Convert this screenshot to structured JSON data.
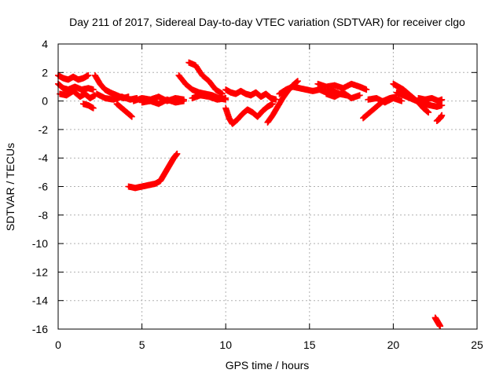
{
  "chart_data": {
    "type": "scatter",
    "title": "Day 211 of 2017, Sidereal Day-to-day VTEC variation (SDTVAR) for receiver clgo",
    "xlabel": "GPS time / hours",
    "ylabel": "SDTVAR / TECUs",
    "xlim": [
      0,
      25
    ],
    "ylim": [
      -16,
      4
    ],
    "xticks": [
      0,
      5,
      10,
      15,
      20,
      25
    ],
    "yticks": [
      4,
      2,
      0,
      -2,
      -4,
      -6,
      -8,
      -10,
      -12,
      -14,
      -16
    ],
    "grid": true,
    "legend": "none",
    "marker": "plus",
    "series": [
      {
        "name": "SDTVAR",
        "color": "#ff0000",
        "tracks": [
          {
            "x": [
              0.0,
              0.3,
              0.6,
              0.9,
              1.2,
              1.5,
              1.8
            ],
            "y": [
              1.8,
              1.6,
              1.5,
              1.7,
              1.5,
              1.6,
              1.8
            ]
          },
          {
            "x": [
              0.0,
              0.3,
              0.6,
              1.0,
              1.4,
              1.8,
              2.1
            ],
            "y": [
              1.2,
              0.9,
              0.8,
              1.0,
              0.8,
              0.9,
              0.8
            ]
          },
          {
            "x": [
              0.1,
              0.5,
              0.9,
              1.3,
              1.6,
              1.9,
              2.2
            ],
            "y": [
              0.5,
              0.4,
              0.7,
              0.3,
              0.5,
              0.2,
              0.4
            ]
          },
          {
            "x": [
              1.5,
              1.8,
              2.1
            ],
            "y": [
              -0.2,
              -0.3,
              -0.5
            ]
          },
          {
            "x": [
              2.2,
              2.5,
              2.8,
              3.1,
              3.5,
              3.9,
              4.2
            ],
            "y": [
              1.8,
              1.2,
              0.8,
              0.6,
              0.4,
              0.2,
              0.3
            ]
          },
          {
            "x": [
              2.3,
              2.8,
              3.3,
              3.8,
              4.3,
              4.7
            ],
            "y": [
              0.5,
              0.2,
              0.1,
              0.3,
              0.1,
              0.2
            ]
          },
          {
            "x": [
              3.5,
              3.8,
              4.1,
              4.4
            ],
            "y": [
              -0.2,
              -0.5,
              -0.8,
              -1.1
            ]
          },
          {
            "x": [
              4.5,
              5.0,
              5.5,
              6.0,
              6.5,
              7.0,
              7.5
            ],
            "y": [
              0.0,
              0.2,
              0.1,
              0.3,
              0.0,
              0.2,
              0.1
            ]
          },
          {
            "x": [
              5.0,
              5.5,
              6.0,
              6.5,
              7.0,
              7.5
            ],
            "y": [
              -0.1,
              0.0,
              -0.2,
              0.1,
              -0.1,
              0.0
            ]
          },
          {
            "x": [
              4.2,
              4.6,
              5.0,
              5.4,
              5.8,
              6.1,
              6.3,
              6.5,
              6.7,
              6.9,
              7.1
            ],
            "y": [
              -6.0,
              -6.1,
              -6.0,
              -5.9,
              -5.8,
              -5.6,
              -5.2,
              -4.8,
              -4.4,
              -4.0,
              -3.7
            ]
          },
          {
            "x": [
              7.2,
              7.6,
              8.0,
              8.4,
              8.8,
              9.2,
              9.6,
              10.0
            ],
            "y": [
              1.8,
              1.2,
              0.8,
              0.6,
              0.5,
              0.4,
              0.2,
              0.1
            ]
          },
          {
            "x": [
              7.8,
              8.2,
              8.6,
              9.0,
              9.4,
              9.8
            ],
            "y": [
              2.7,
              2.5,
              1.8,
              1.4,
              0.8,
              0.5
            ]
          },
          {
            "x": [
              8.0,
              8.5,
              9.0,
              9.5,
              10.0
            ],
            "y": [
              0.2,
              0.4,
              0.3,
              0.1,
              0.2
            ]
          },
          {
            "x": [
              10.0,
              10.3,
              10.6,
              10.9,
              11.2,
              11.5,
              11.8,
              12.1,
              12.4,
              12.7,
              13.0
            ],
            "y": [
              0.8,
              0.6,
              0.5,
              0.7,
              0.5,
              0.4,
              0.6,
              0.3,
              0.5,
              0.2,
              0.1
            ]
          },
          {
            "x": [
              10.0,
              10.2,
              10.4,
              10.7,
              11.0,
              11.3,
              11.6,
              11.9,
              12.2,
              12.5,
              12.8
            ],
            "y": [
              -0.5,
              -1.2,
              -1.6,
              -1.3,
              -0.9,
              -0.6,
              -0.8,
              -1.1,
              -0.7,
              -0.4,
              -0.2
            ]
          },
          {
            "x": [
              12.5,
              12.8,
              13.1,
              13.4,
              13.7,
              14.0,
              14.3
            ],
            "y": [
              -1.5,
              -1.0,
              -0.4,
              0.2,
              0.7,
              1.1,
              1.4
            ]
          },
          {
            "x": [
              13.2,
              13.6,
              14.0,
              14.4,
              14.8,
              15.2,
              15.6,
              16.0,
              16.4,
              16.8,
              17.2
            ],
            "y": [
              0.5,
              0.8,
              1.0,
              0.9,
              0.8,
              0.7,
              0.8,
              0.6,
              0.7,
              0.5,
              0.4
            ]
          },
          {
            "x": [
              15.5,
              16.0,
              16.5,
              17.0,
              17.5,
              18.0,
              18.4
            ],
            "y": [
              1.2,
              1.0,
              1.1,
              0.9,
              1.2,
              1.0,
              0.8
            ]
          },
          {
            "x": [
              16.0,
              16.5,
              17.0,
              17.5,
              18.0
            ],
            "y": [
              0.5,
              0.3,
              0.6,
              0.2,
              0.4
            ]
          },
          {
            "x": [
              18.2,
              18.6,
              19.0,
              19.4,
              19.8,
              20.2
            ],
            "y": [
              -1.2,
              -0.8,
              -0.4,
              0.0,
              0.2,
              0.3
            ]
          },
          {
            "x": [
              18.5,
              19.0,
              19.5,
              20.0,
              20.5
            ],
            "y": [
              0.1,
              0.2,
              -0.1,
              0.2,
              0.0
            ]
          },
          {
            "x": [
              20.0,
              20.3,
              20.6,
              20.9,
              21.2,
              21.5,
              21.8,
              22.1
            ],
            "y": [
              1.2,
              1.0,
              0.8,
              0.5,
              0.2,
              -0.1,
              -0.5,
              -0.8
            ]
          },
          {
            "x": [
              20.2,
              20.6,
              21.0,
              21.4,
              21.8,
              22.2,
              22.6,
              22.9
            ],
            "y": [
              0.6,
              0.4,
              0.2,
              0.0,
              -0.2,
              -0.3,
              -0.4,
              -0.3
            ]
          },
          {
            "x": [
              21.5,
              21.9,
              22.3,
              22.7,
              22.9
            ],
            "y": [
              0.2,
              0.1,
              0.2,
              0.0,
              0.1
            ]
          },
          {
            "x": [
              22.6,
              22.8,
              22.9
            ],
            "y": [
              -1.4,
              -1.2,
              -1.0
            ]
          },
          {
            "x": [
              22.5,
              22.6,
              22.7,
              22.8
            ],
            "y": [
              -15.2,
              -15.4,
              -15.6,
              -15.8
            ]
          }
        ]
      }
    ]
  }
}
